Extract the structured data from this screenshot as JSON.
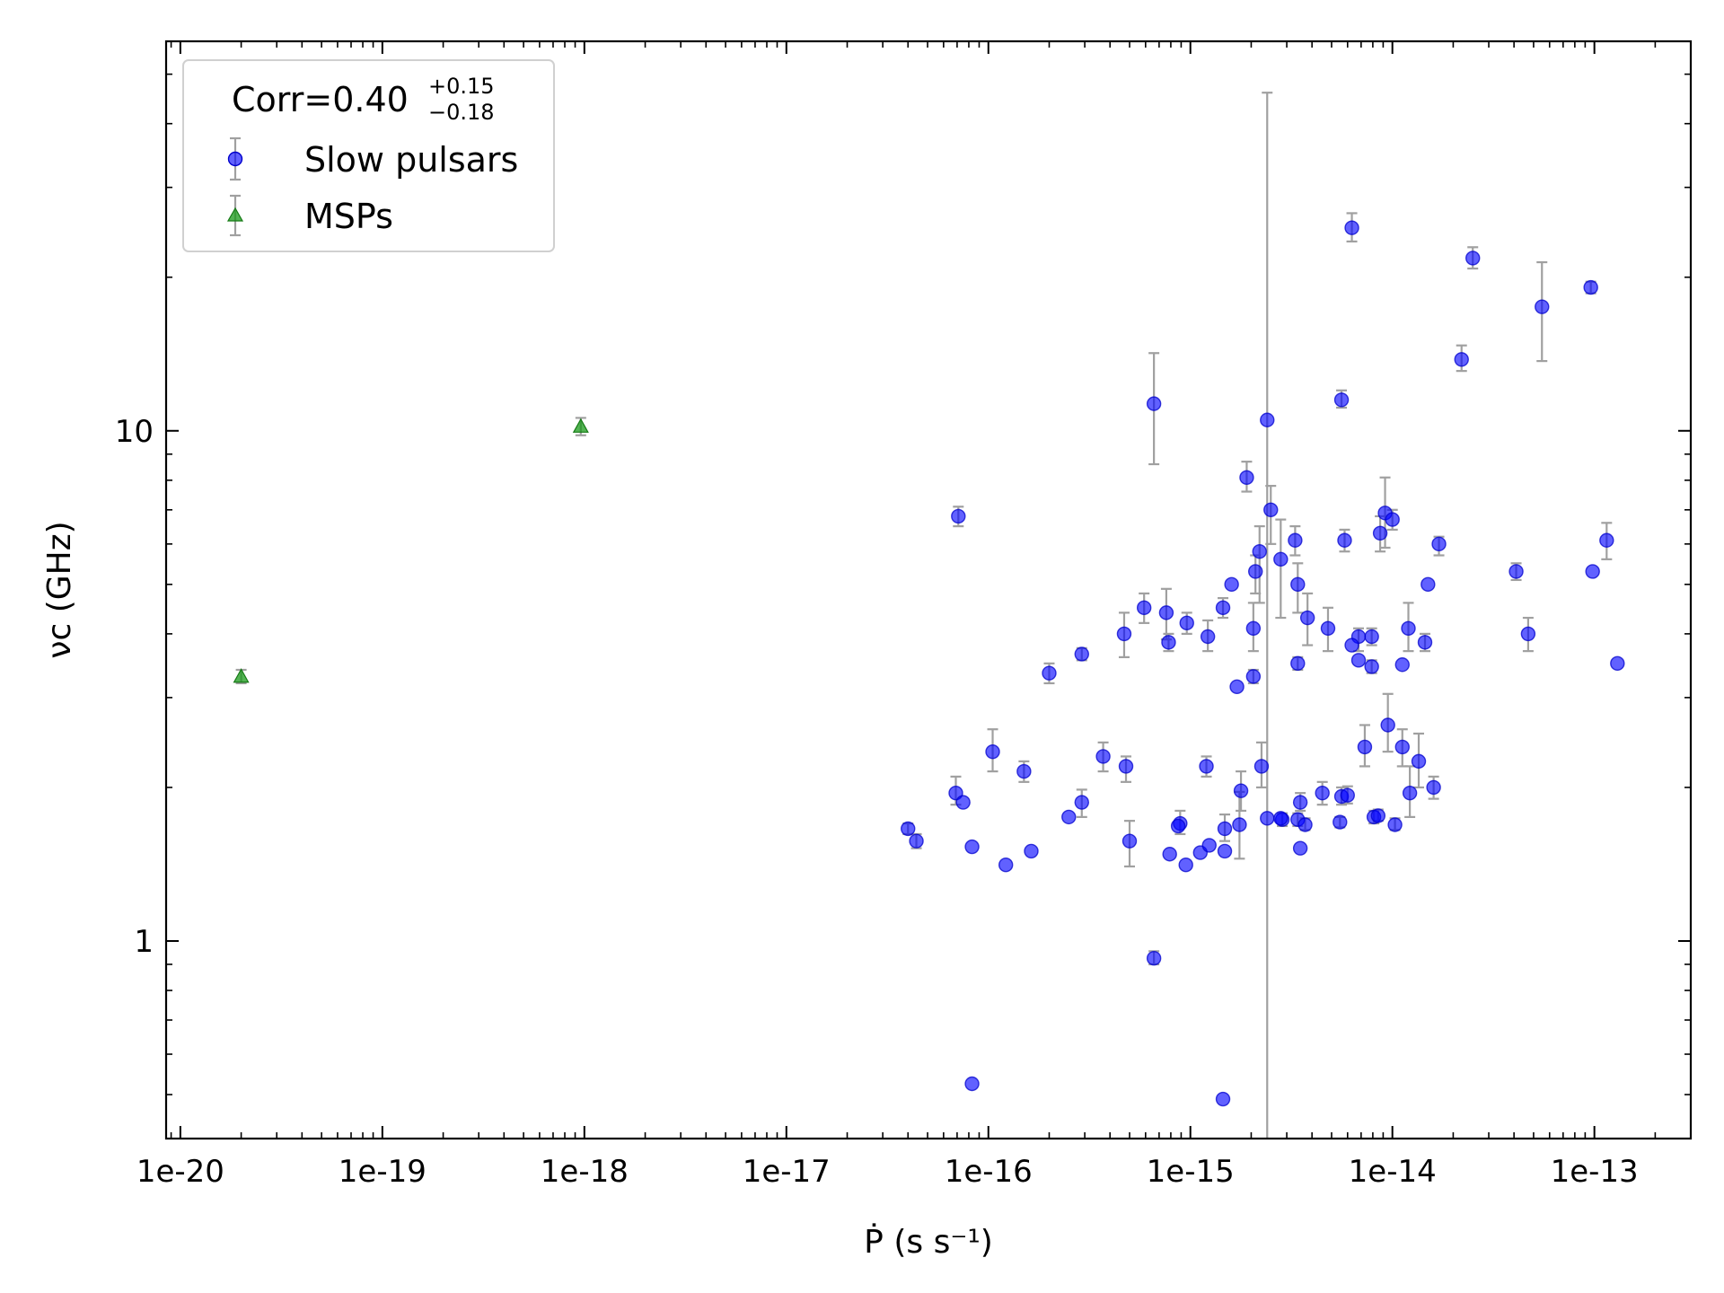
{
  "chart_data": {
    "type": "scatter",
    "xlabel": "Ṗ (s s⁻¹)",
    "ylabel": "νc (GHz)",
    "x_scale": "log",
    "y_scale": "log",
    "xlim": [
      8.5e-21,
      3e-13
    ],
    "ylim": [
      0.41,
      58
    ],
    "x_tick_labels": [
      "1e-20",
      "1e-19",
      "1e-18",
      "1e-17",
      "1e-16",
      "1e-15",
      "1e-14",
      "1e-13"
    ],
    "x_tick_values": [
      1e-20,
      1e-19,
      1e-18,
      1e-17,
      1e-16,
      1e-15,
      1e-14,
      1e-13
    ],
    "y_tick_labels": [
      "1",
      "10"
    ],
    "y_tick_values": [
      1,
      10
    ],
    "grid": false,
    "legend_position": "top-left",
    "legend": {
      "title_main": "Corr=0.40",
      "title_sup": "+0.15",
      "title_sub": "−0.18",
      "entries": [
        "Slow pulsars",
        "MSPs"
      ]
    },
    "colors": {
      "slow_pulsars": "#0000ff",
      "msps": "#1a9a1a",
      "errorbar": "#a0a0a0"
    },
    "series": [
      {
        "name": "Slow pulsars",
        "marker": "circle",
        "points": [
          {
            "x": 6.3e-15,
            "y": 25.0,
            "lo": 23.5,
            "hi": 26.7
          },
          {
            "x": 2.5e-14,
            "y": 21.8,
            "lo": 20.8,
            "hi": 22.9
          },
          {
            "x": 5.5e-14,
            "y": 17.5,
            "lo": 13.7,
            "hi": 21.4
          },
          {
            "x": 9.6e-14,
            "y": 19.1,
            "lo": 18.6,
            "hi": 19.6
          },
          {
            "x": 2.2e-14,
            "y": 13.8,
            "lo": 13.1,
            "hi": 14.7
          },
          {
            "x": 6.6e-16,
            "y": 11.3,
            "lo": 8.6,
            "hi": 14.2
          },
          {
            "x": 5.6e-15,
            "y": 11.5,
            "lo": 11.1,
            "hi": 12.0
          },
          {
            "x": 2.4e-15,
            "y": 10.5
          },
          {
            "x": 1.9e-15,
            "y": 8.1,
            "lo": 7.6,
            "hi": 8.7
          },
          {
            "x": 7.1e-17,
            "y": 6.8,
            "lo": 6.5,
            "hi": 7.1
          },
          {
            "x": 2.5e-15,
            "y": 7.0,
            "lo": 6.0,
            "hi": 7.8
          },
          {
            "x": 9.2e-15,
            "y": 6.9,
            "lo": 5.9,
            "hi": 8.1
          },
          {
            "x": 1e-14,
            "y": 6.7,
            "lo": 6.4,
            "hi": 7.0
          },
          {
            "x": 8.7e-15,
            "y": 6.3,
            "lo": 5.8,
            "hi": 6.8
          },
          {
            "x": 5.8e-15,
            "y": 6.1,
            "lo": 5.8,
            "hi": 6.4
          },
          {
            "x": 3.3e-15,
            "y": 6.1,
            "lo": 5.7,
            "hi": 6.5
          },
          {
            "x": 1.7e-14,
            "y": 6.0,
            "lo": 5.7,
            "hi": 6.2
          },
          {
            "x": 1.15e-13,
            "y": 6.1,
            "lo": 5.6,
            "hi": 6.6
          },
          {
            "x": 2.2e-15,
            "y": 5.8,
            "lo": 4.6,
            "hi": 6.5
          },
          {
            "x": 2.8e-15,
            "y": 5.6,
            "lo": 4.3,
            "hi": 6.7
          },
          {
            "x": 2.1e-15,
            "y": 5.3,
            "lo": 4.8,
            "hi": 5.7
          },
          {
            "x": 4.1e-14,
            "y": 5.3,
            "lo": 5.1,
            "hi": 5.5
          },
          {
            "x": 9.8e-14,
            "y": 5.3
          },
          {
            "x": 1.6e-15,
            "y": 5.0
          },
          {
            "x": 3.4e-15,
            "y": 5.0,
            "lo": 4.4,
            "hi": 5.5
          },
          {
            "x": 1.5e-14,
            "y": 5.0
          },
          {
            "x": 5.9e-16,
            "y": 4.5,
            "lo": 4.2,
            "hi": 4.8
          },
          {
            "x": 7.6e-16,
            "y": 4.4,
            "lo": 3.9,
            "hi": 4.9
          },
          {
            "x": 1.45e-15,
            "y": 4.5,
            "lo": 4.3,
            "hi": 4.7
          },
          {
            "x": 9.6e-16,
            "y": 4.2,
            "lo": 4.0,
            "hi": 4.4
          },
          {
            "x": 3.8e-15,
            "y": 4.3,
            "lo": 3.8,
            "hi": 4.8
          },
          {
            "x": 4.8e-15,
            "y": 4.1,
            "lo": 3.7,
            "hi": 4.5
          },
          {
            "x": 2.05e-15,
            "y": 4.1,
            "lo": 3.7,
            "hi": 4.6
          },
          {
            "x": 1.2e-14,
            "y": 4.1,
            "lo": 3.7,
            "hi": 4.6
          },
          {
            "x": 4.7e-16,
            "y": 4.0,
            "lo": 3.6,
            "hi": 4.4
          },
          {
            "x": 1.22e-15,
            "y": 3.95,
            "lo": 3.7,
            "hi": 4.25
          },
          {
            "x": 6.8e-15,
            "y": 3.95,
            "lo": 3.7,
            "hi": 4.1
          },
          {
            "x": 7.9e-15,
            "y": 3.95,
            "lo": 3.8,
            "hi": 4.1
          },
          {
            "x": 4.7e-14,
            "y": 4.0,
            "lo": 3.7,
            "hi": 4.3
          },
          {
            "x": 7.8e-16,
            "y": 3.85,
            "lo": 3.7,
            "hi": 4.0
          },
          {
            "x": 6.3e-15,
            "y": 3.8
          },
          {
            "x": 1.45e-14,
            "y": 3.85,
            "lo": 3.7,
            "hi": 4.0
          },
          {
            "x": 2.9e-16,
            "y": 3.65,
            "lo": 3.55,
            "hi": 3.75
          },
          {
            "x": 6.8e-15,
            "y": 3.55
          },
          {
            "x": 3.4e-15,
            "y": 3.5,
            "lo": 3.4,
            "hi": 3.6
          },
          {
            "x": 7.9e-15,
            "y": 3.45,
            "lo": 3.35,
            "hi": 3.55
          },
          {
            "x": 1.12e-14,
            "y": 3.48
          },
          {
            "x": 1.3e-13,
            "y": 3.5
          },
          {
            "x": 2e-16,
            "y": 3.35,
            "lo": 3.2,
            "hi": 3.5
          },
          {
            "x": 2.05e-15,
            "y": 3.3,
            "lo": 3.2,
            "hi": 3.4
          },
          {
            "x": 1.7e-15,
            "y": 3.15
          },
          {
            "x": 9.5e-15,
            "y": 2.65,
            "lo": 2.35,
            "hi": 3.05
          },
          {
            "x": 1.05e-16,
            "y": 2.35,
            "lo": 2.15,
            "hi": 2.6
          },
          {
            "x": 7.3e-15,
            "y": 2.4,
            "lo": 2.2,
            "hi": 2.65
          },
          {
            "x": 1.12e-14,
            "y": 2.4,
            "lo": 2.2,
            "hi": 2.6
          },
          {
            "x": 3.7e-16,
            "y": 2.3,
            "lo": 2.15,
            "hi": 2.45
          },
          {
            "x": 1.35e-14,
            "y": 2.25,
            "lo": 2.0,
            "hi": 2.55
          },
          {
            "x": 4.8e-16,
            "y": 2.2,
            "lo": 2.05,
            "hi": 2.3
          },
          {
            "x": 1.5e-16,
            "y": 2.15,
            "lo": 2.05,
            "hi": 2.25
          },
          {
            "x": 1.2e-15,
            "y": 2.2,
            "lo": 2.1,
            "hi": 2.3
          },
          {
            "x": 2.25e-15,
            "y": 2.2,
            "lo": 2.0,
            "hi": 2.45
          },
          {
            "x": 1.6e-14,
            "y": 2.0,
            "lo": 1.9,
            "hi": 2.1
          },
          {
            "x": 6.9e-17,
            "y": 1.95,
            "lo": 1.85,
            "hi": 2.1
          },
          {
            "x": 1.78e-15,
            "y": 1.97,
            "lo": 1.8,
            "hi": 2.15
          },
          {
            "x": 4.5e-15,
            "y": 1.95,
            "lo": 1.85,
            "hi": 2.05
          },
          {
            "x": 1.22e-14,
            "y": 1.95,
            "lo": 1.75,
            "hi": 2.2
          },
          {
            "x": 5.6e-15,
            "y": 1.92,
            "lo": 1.85,
            "hi": 2.0
          },
          {
            "x": 6e-15,
            "y": 1.93,
            "lo": 1.86,
            "hi": 2.01
          },
          {
            "x": 7.5e-17,
            "y": 1.87
          },
          {
            "x": 2.9e-16,
            "y": 1.87,
            "lo": 1.75,
            "hi": 1.98
          },
          {
            "x": 3.5e-15,
            "y": 1.87,
            "lo": 1.8,
            "hi": 1.95
          },
          {
            "x": 2.5e-16,
            "y": 1.75
          },
          {
            "x": 2.85e-15,
            "y": 1.73,
            "lo": 1.68,
            "hi": 1.78
          },
          {
            "x": 2.8e-15,
            "y": 1.74
          },
          {
            "x": 3.4e-15,
            "y": 1.73,
            "lo": 1.68,
            "hi": 1.78
          },
          {
            "x": 8.1e-15,
            "y": 1.75,
            "lo": 1.7,
            "hi": 1.8
          },
          {
            "x": 8.5e-15,
            "y": 1.76,
            "lo": 1.72,
            "hi": 1.81
          },
          {
            "x": 3.7e-15,
            "y": 1.69,
            "lo": 1.65,
            "hi": 1.74
          },
          {
            "x": 5.5e-15,
            "y": 1.71,
            "lo": 1.67,
            "hi": 1.75
          },
          {
            "x": 1.03e-14,
            "y": 1.69,
            "lo": 1.65,
            "hi": 1.74
          },
          {
            "x": 8.9e-16,
            "y": 1.7,
            "lo": 1.62,
            "hi": 1.8
          },
          {
            "x": 8.7e-16,
            "y": 1.68
          },
          {
            "x": 4e-17,
            "y": 1.66,
            "lo": 1.62,
            "hi": 1.7
          },
          {
            "x": 1.48e-15,
            "y": 1.66,
            "lo": 1.57,
            "hi": 1.77
          },
          {
            "x": 1.75e-15,
            "y": 1.69,
            "lo": 1.45,
            "hi": 1.96
          },
          {
            "x": 4.4e-17,
            "y": 1.57,
            "lo": 1.52,
            "hi": 1.62
          },
          {
            "x": 5e-16,
            "y": 1.57,
            "lo": 1.4,
            "hi": 1.72
          },
          {
            "x": 8.3e-17,
            "y": 1.53
          },
          {
            "x": 1.63e-16,
            "y": 1.5
          },
          {
            "x": 7.9e-16,
            "y": 1.48
          },
          {
            "x": 1.12e-15,
            "y": 1.49
          },
          {
            "x": 1.24e-15,
            "y": 1.54
          },
          {
            "x": 1.48e-15,
            "y": 1.5
          },
          {
            "x": 3.5e-15,
            "y": 1.52
          },
          {
            "x": 1.22e-16,
            "y": 1.41
          },
          {
            "x": 9.5e-16,
            "y": 1.41
          },
          {
            "x": 6.6e-16,
            "y": 0.925,
            "lo": 0.9,
            "hi": 0.955
          },
          {
            "x": 8.3e-17,
            "y": 0.525
          },
          {
            "x": 1.45e-15,
            "y": 0.49
          },
          {
            "x": 2.4e-15,
            "y": 1.74,
            "lo": 0.41,
            "hi": 46
          }
        ]
      },
      {
        "name": "MSPs",
        "marker": "triangle",
        "points": [
          {
            "x": 2e-20,
            "y": 3.3,
            "lo": 3.2,
            "hi": 3.4
          },
          {
            "x": 9.6e-19,
            "y": 10.2,
            "lo": 9.8,
            "hi": 10.6
          }
        ]
      }
    ]
  }
}
